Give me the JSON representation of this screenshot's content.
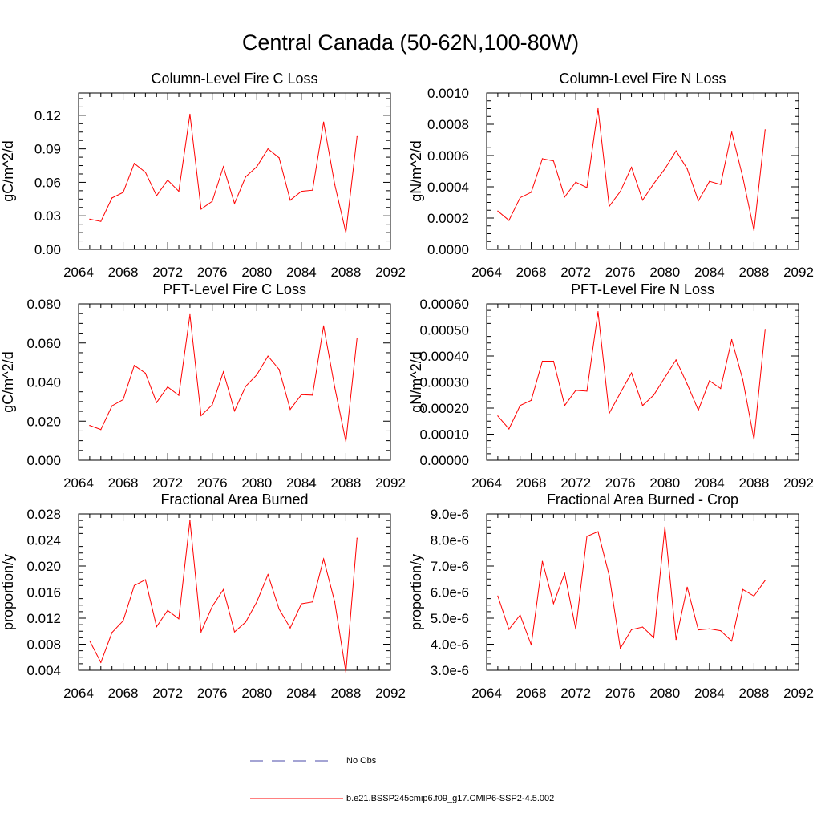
{
  "figure_title": "Central Canada (50-62N,100-80W)",
  "colors": {
    "series": "#ff0000",
    "no_obs": "#4a4aa8",
    "axis": "#000000"
  },
  "chart_data": [
    {
      "type": "line",
      "title": "Column-Level Fire C Loss",
      "ylabel": "gC/m^2/d",
      "xlim": [
        2064,
        2092
      ],
      "ylim": [
        0,
        0.14
      ],
      "x_ticks": [
        "2064",
        "2068",
        "2072",
        "2076",
        "2080",
        "2084",
        "2088",
        "2092"
      ],
      "y_ticks": [
        "0.00",
        "0.03",
        "0.06",
        "0.09",
        "0.12"
      ],
      "y_tick_values": [
        0,
        0.03,
        0.06,
        0.09,
        0.12
      ],
      "x": [
        2065,
        2066,
        2067,
        2068,
        2069,
        2070,
        2071,
        2072,
        2073,
        2074,
        2075,
        2076,
        2077,
        2078,
        2079,
        2080,
        2081,
        2082,
        2083,
        2084,
        2085,
        2086,
        2087,
        2088,
        2089
      ],
      "series": [
        {
          "values": [
            0.027,
            0.025,
            0.046,
            0.051,
            0.077,
            0.069,
            0.048,
            0.062,
            0.052,
            0.121,
            0.036,
            0.043,
            0.074,
            0.041,
            0.065,
            0.074,
            0.09,
            0.082,
            0.044,
            0.052,
            0.053,
            0.114,
            0.058,
            0.015,
            0.101
          ]
        }
      ]
    },
    {
      "type": "line",
      "title": "Column-Level Fire N Loss",
      "ylabel": "gN/m^2/d",
      "xlim": [
        2064,
        2092
      ],
      "ylim": [
        0,
        0.001
      ],
      "x_ticks": [
        "2064",
        "2068",
        "2072",
        "2076",
        "2080",
        "2084",
        "2088",
        "2092"
      ],
      "y_ticks": [
        "0.0000",
        "0.0002",
        "0.0004",
        "0.0006",
        "0.0008",
        "0.0010"
      ],
      "y_tick_values": [
        0,
        0.0002,
        0.0004,
        0.0006,
        0.0008,
        0.001
      ],
      "x": [
        2065,
        2066,
        2067,
        2068,
        2069,
        2070,
        2071,
        2072,
        2073,
        2074,
        2075,
        2076,
        2077,
        2078,
        2079,
        2080,
        2081,
        2082,
        2083,
        2084,
        2085,
        2086,
        2087,
        2088,
        2089
      ],
      "series": [
        {
          "values": [
            0.000245,
            0.000185,
            0.00033,
            0.000365,
            0.00058,
            0.000565,
            0.000335,
            0.00043,
            0.000395,
            0.0009,
            0.000275,
            0.00037,
            0.000525,
            0.000315,
            0.00042,
            0.000515,
            0.00063,
            0.000515,
            0.00031,
            0.000435,
            0.000415,
            0.00075,
            0.00046,
            0.00012,
            0.000765
          ]
        }
      ]
    },
    {
      "type": "line",
      "title": "PFT-Level Fire C Loss",
      "ylabel": "gC/m^2/d",
      "xlim": [
        2064,
        2092
      ],
      "ylim": [
        0,
        0.08
      ],
      "x_ticks": [
        "2064",
        "2068",
        "2072",
        "2076",
        "2080",
        "2084",
        "2088",
        "2092"
      ],
      "y_ticks": [
        "0.000",
        "0.020",
        "0.040",
        "0.060",
        "0.080"
      ],
      "y_tick_values": [
        0,
        0.02,
        0.04,
        0.06,
        0.08
      ],
      "x": [
        2065,
        2066,
        2067,
        2068,
        2069,
        2070,
        2071,
        2072,
        2073,
        2074,
        2075,
        2076,
        2077,
        2078,
        2079,
        2080,
        2081,
        2082,
        2083,
        2084,
        2085,
        2086,
        2087,
        2088,
        2089
      ],
      "series": [
        {
          "values": [
            0.0178,
            0.0157,
            0.0278,
            0.031,
            0.0485,
            0.0445,
            0.0295,
            0.0375,
            0.0332,
            0.0745,
            0.0228,
            0.0283,
            0.0452,
            0.0252,
            0.0378,
            0.0437,
            0.0533,
            0.0465,
            0.026,
            0.0335,
            0.0333,
            0.0688,
            0.0373,
            0.0095,
            0.0625
          ]
        }
      ]
    },
    {
      "type": "line",
      "title": "PFT-Level Fire N Loss",
      "ylabel": "gN/m^2/d",
      "xlim": [
        2064,
        2092
      ],
      "ylim": [
        0,
        0.0006
      ],
      "x_ticks": [
        "2064",
        "2068",
        "2072",
        "2076",
        "2080",
        "2084",
        "2088",
        "2092"
      ],
      "y_ticks": [
        "0.00000",
        "0.00010",
        "0.00020",
        "0.00030",
        "0.00040",
        "0.00050",
        "0.00060"
      ],
      "y_tick_values": [
        0,
        0.0001,
        0.0002,
        0.0003,
        0.0004,
        0.0005,
        0.0006
      ],
      "x": [
        2065,
        2066,
        2067,
        2068,
        2069,
        2070,
        2071,
        2072,
        2073,
        2074,
        2075,
        2076,
        2077,
        2078,
        2079,
        2080,
        2081,
        2082,
        2083,
        2084,
        2085,
        2086,
        2087,
        2088,
        2089
      ],
      "series": [
        {
          "values": [
            0.00017,
            0.00012,
            0.00021,
            0.00023,
            0.00038,
            0.00038,
            0.00021,
            0.000268,
            0.000265,
            0.00057,
            0.00018,
            0.000258,
            0.000335,
            0.00021,
            0.00025,
            0.000318,
            0.000385,
            0.000292,
            0.000192,
            0.000305,
            0.000275,
            0.000463,
            0.000308,
            8e-05,
            0.000502
          ]
        }
      ]
    },
    {
      "type": "line",
      "title": "Fractional Area Burned",
      "ylabel": "proportion/y",
      "xlim": [
        2064,
        2092
      ],
      "ylim": [
        0.004,
        0.028
      ],
      "x_ticks": [
        "2064",
        "2068",
        "2072",
        "2076",
        "2080",
        "2084",
        "2088",
        "2092"
      ],
      "y_ticks": [
        "0.004",
        "0.008",
        "0.012",
        "0.016",
        "0.020",
        "0.024",
        "0.028"
      ],
      "y_tick_values": [
        0.004,
        0.008,
        0.012,
        0.016,
        0.02,
        0.024,
        0.028
      ],
      "x": [
        2065,
        2066,
        2067,
        2068,
        2069,
        2070,
        2071,
        2072,
        2073,
        2074,
        2075,
        2076,
        2077,
        2078,
        2079,
        2080,
        2081,
        2082,
        2083,
        2084,
        2085,
        2086,
        2087,
        2088,
        2089
      ],
      "series": [
        {
          "values": [
            0.0085,
            0.0052,
            0.0098,
            0.0116,
            0.017,
            0.0179,
            0.0107,
            0.0132,
            0.0119,
            0.027,
            0.0099,
            0.0138,
            0.0164,
            0.0099,
            0.0114,
            0.0145,
            0.0187,
            0.0134,
            0.0105,
            0.0142,
            0.0145,
            0.0211,
            0.0145,
            0.0037,
            0.0243
          ]
        }
      ]
    },
    {
      "type": "line",
      "title": "Fractional Area Burned - Crop",
      "ylabel": "proportion/y",
      "xlim": [
        2064,
        2092
      ],
      "ylim": [
        3e-06,
        9e-06
      ],
      "x_ticks": [
        "2064",
        "2068",
        "2072",
        "2076",
        "2080",
        "2084",
        "2088",
        "2092"
      ],
      "y_ticks": [
        "3.0e-6",
        "4.0e-6",
        "5.0e-6",
        "6.0e-6",
        "7.0e-6",
        "8.0e-6",
        "9.0e-6"
      ],
      "y_tick_values": [
        3e-06,
        4e-06,
        5e-06,
        6e-06,
        7e-06,
        8e-06,
        9e-06
      ],
      "x": [
        2065,
        2066,
        2067,
        2068,
        2069,
        2070,
        2071,
        2072,
        2073,
        2074,
        2075,
        2076,
        2077,
        2078,
        2079,
        2080,
        2081,
        2082,
        2083,
        2084,
        2085,
        2086,
        2087,
        2088,
        2089
      ],
      "series": [
        {
          "values": [
            5.85e-06,
            4.57e-06,
            5.12e-06,
            3.97e-06,
            7.18e-06,
            5.56e-06,
            6.72e-06,
            4.58e-06,
            8.14e-06,
            8.32e-06,
            6.64e-06,
            3.84e-06,
            4.56e-06,
            4.66e-06,
            4.25e-06,
            8.5e-06,
            4.18e-06,
            6.19e-06,
            4.55e-06,
            4.59e-06,
            4.52e-06,
            4.12e-06,
            6.1e-06,
            5.85e-06,
            6.45e-06
          ]
        }
      ]
    }
  ],
  "legend": {
    "items": [
      {
        "label": "No Obs",
        "style": "dashed",
        "color": "#4a4aa8"
      },
      {
        "label": "b.e21.BSSP245cmip6.f09_g17.CMIP6-SSP2-4.5.002",
        "style": "solid",
        "color": "#ff0000"
      }
    ]
  }
}
